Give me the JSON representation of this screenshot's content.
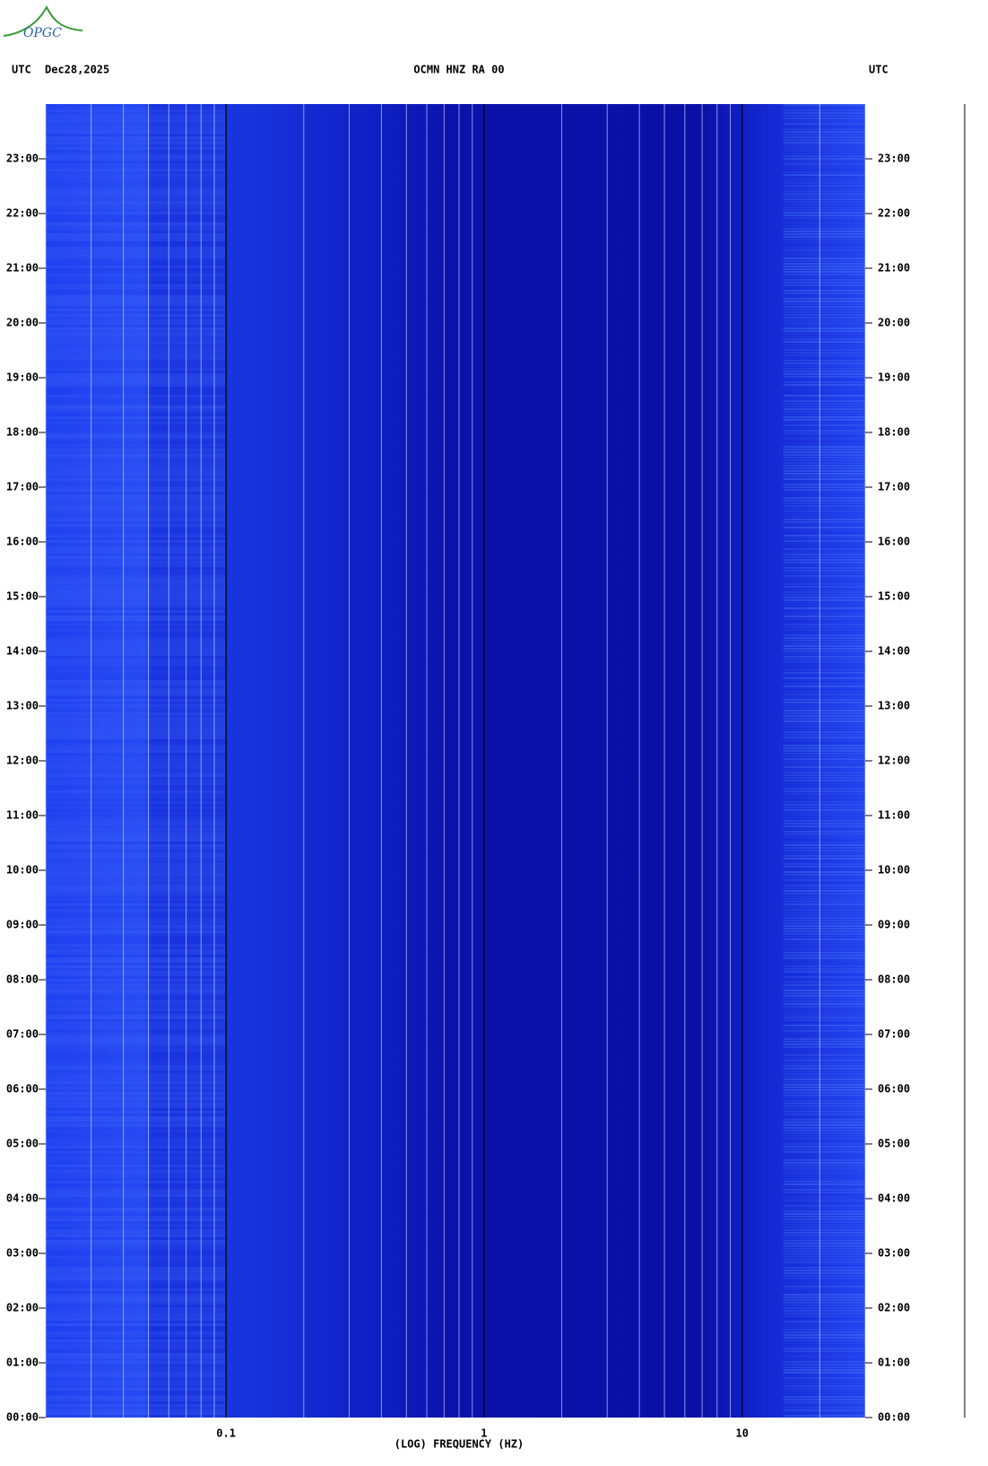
{
  "logo": "OPGC",
  "chart_data": {
    "type": "spectrogram",
    "title": "OCMN HNZ RA 00",
    "timezone_left": "UTC",
    "date": "Dec28,2025",
    "timezone_right": "UTC",
    "xlabel": "(LOG) FREQUENCY (HZ)",
    "xscale": "log",
    "xlim": [
      0.02,
      30
    ],
    "xticks": [
      {
        "value": 0.1,
        "label": "0.1"
      },
      1,
      10
    ],
    "xgrid": [
      0.02,
      0.03,
      0.04,
      0.05,
      0.06,
      0.07,
      0.08,
      0.09,
      0.2,
      0.3,
      0.4,
      0.5,
      0.6,
      0.7,
      0.8,
      0.9,
      2,
      3,
      4,
      5,
      6,
      7,
      8,
      9,
      20,
      30
    ],
    "ylim": [
      0,
      24
    ],
    "yticks": [
      {
        "value": 0,
        "label": "00:00"
      },
      {
        "value": 1,
        "label": "01:00"
      },
      {
        "value": 2,
        "label": "02:00"
      },
      {
        "value": 3,
        "label": "03:00"
      },
      {
        "value": 4,
        "label": "04:00"
      },
      {
        "value": 5,
        "label": "05:00"
      },
      {
        "value": 6,
        "label": "06:00"
      },
      {
        "value": 7,
        "label": "07:00"
      },
      {
        "value": 8,
        "label": "08:00"
      },
      {
        "value": 9,
        "label": "09:00"
      },
      {
        "value": 10,
        "label": "10:00"
      },
      {
        "value": 11,
        "label": "11:00"
      },
      {
        "value": 12,
        "label": "12:00"
      },
      {
        "value": 13,
        "label": "13:00"
      },
      {
        "value": 14,
        "label": "14:00"
      },
      {
        "value": 15,
        "label": "15:00"
      },
      {
        "value": 16,
        "label": "16:00"
      },
      {
        "value": 17,
        "label": "17:00"
      },
      {
        "value": 18,
        "label": "18:00"
      },
      {
        "value": 19,
        "label": "19:00"
      },
      {
        "value": 20,
        "label": "20:00"
      },
      {
        "value": 21,
        "label": "21:00"
      },
      {
        "value": 22,
        "label": "22:00"
      },
      {
        "value": 23,
        "label": "23:00"
      }
    ]
  }
}
